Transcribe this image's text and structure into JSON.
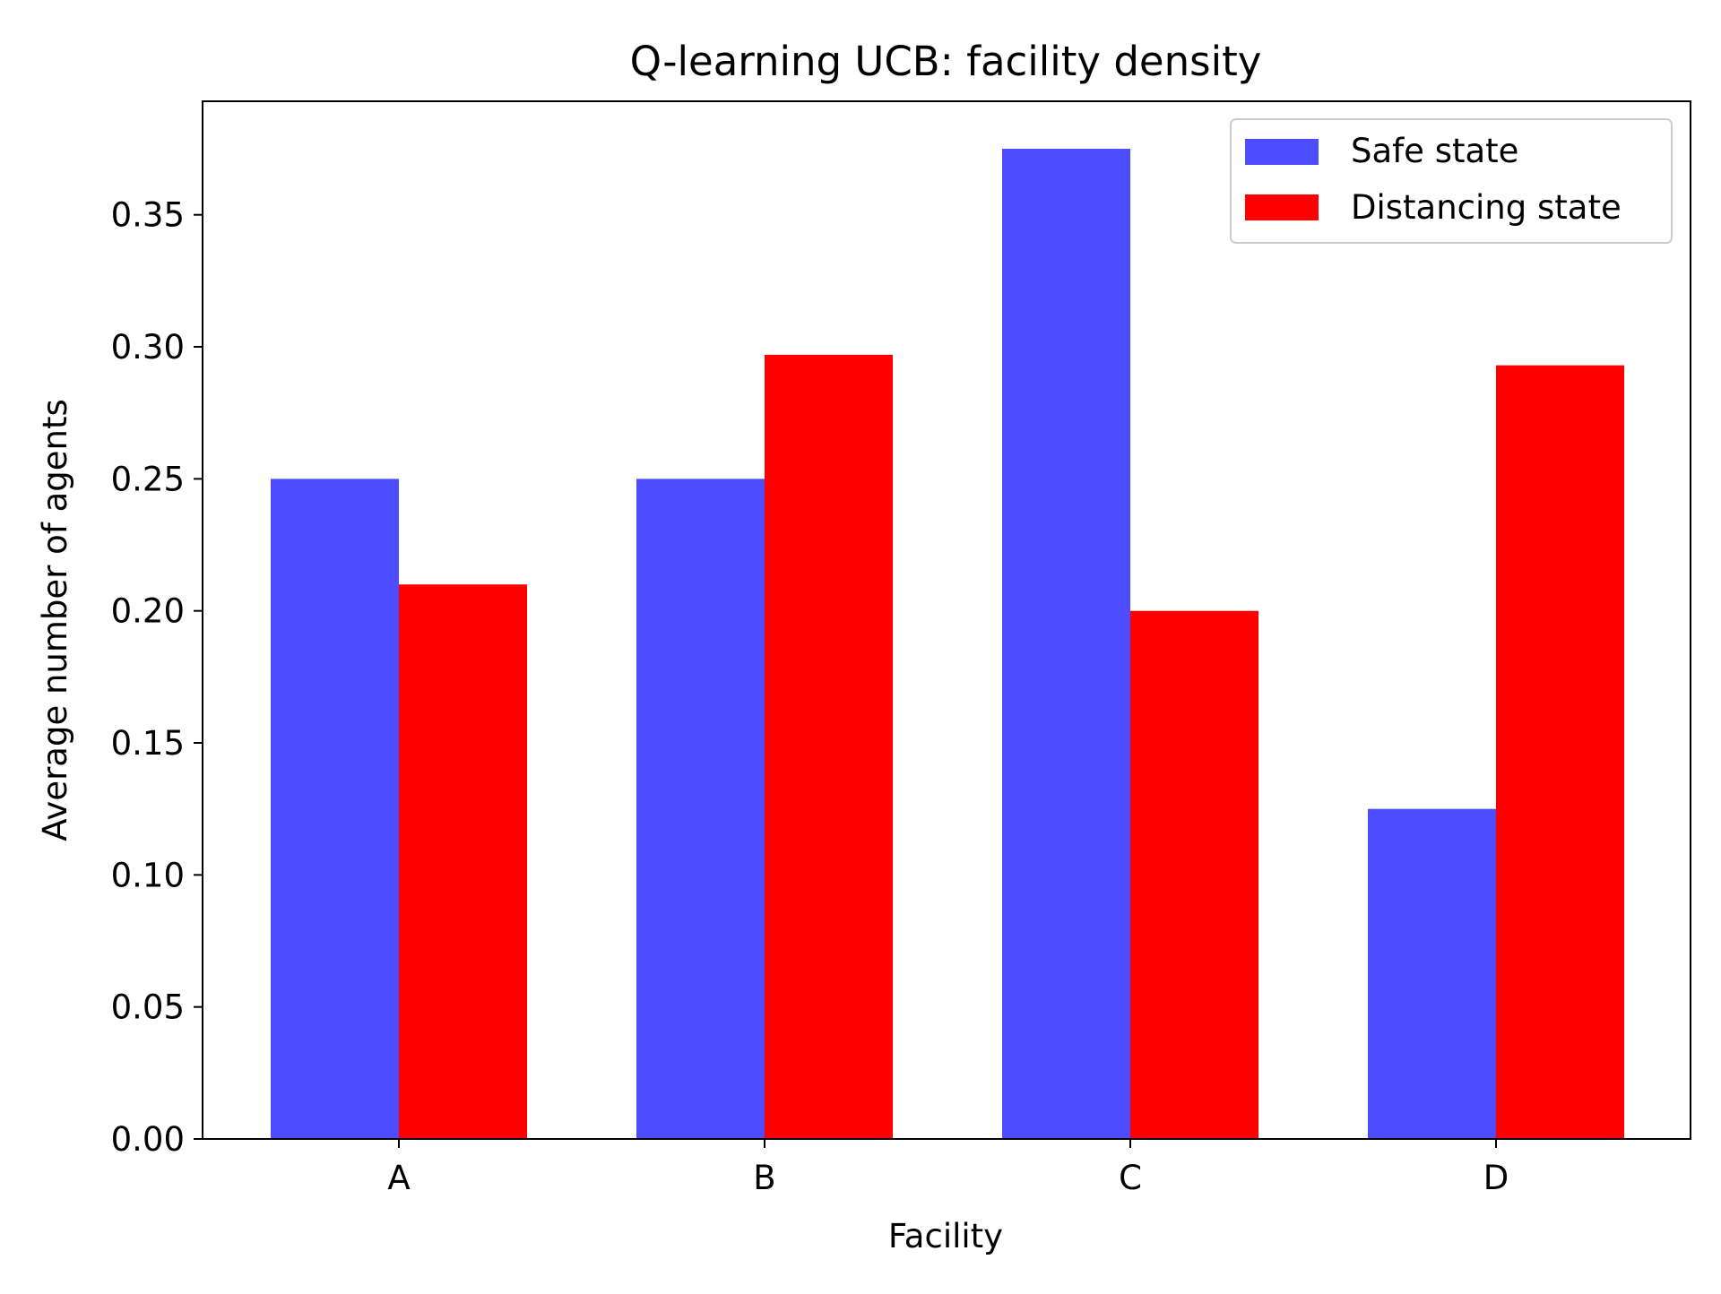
{
  "chart_data": {
    "type": "bar",
    "title": "Q-learning UCB: facility density",
    "xlabel": "Facility",
    "ylabel": "Average number of agents",
    "categories": [
      "A",
      "B",
      "C",
      "D"
    ],
    "series": [
      {
        "name": "Safe state",
        "color": "#4d4dff",
        "values": [
          0.25,
          0.25,
          0.375,
          0.125
        ]
      },
      {
        "name": "Distancing state",
        "color": "#ff0000",
        "values": [
          0.21,
          0.297,
          0.2,
          0.293
        ]
      }
    ],
    "ylim": [
      0,
      0.393
    ],
    "yticks": [
      "0.00",
      "0.05",
      "0.10",
      "0.15",
      "0.20",
      "0.25",
      "0.30",
      "0.35"
    ],
    "grid": false,
    "legend_position": "top-right"
  }
}
